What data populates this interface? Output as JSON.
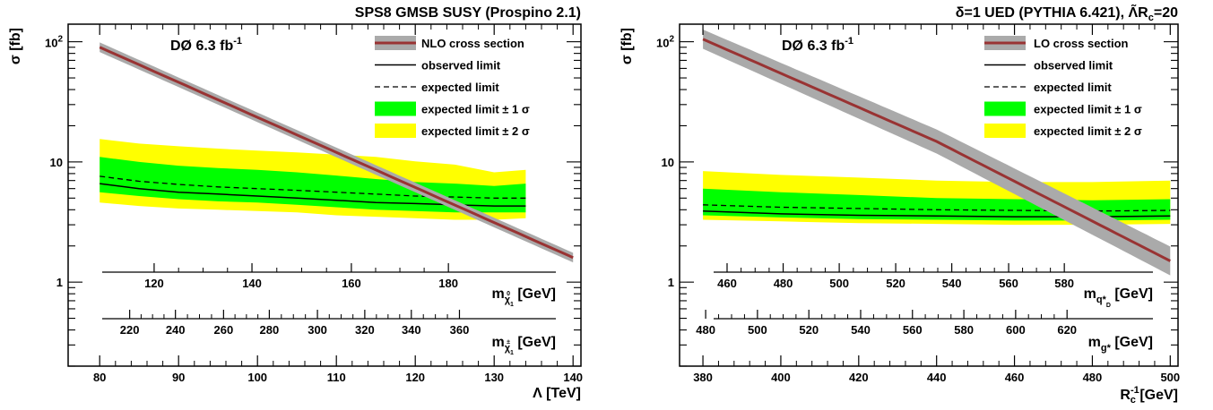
{
  "chart_data": [
    {
      "type": "line",
      "title": "SPS8 GMSB SUSY (Prospino 2.1)",
      "experiment_label": "DØ 6.3 fb",
      "experiment_sup": "-1",
      "xlabel": "Λ [TeV]",
      "ylabel": "σ [fb]",
      "xlim": [
        76,
        141
      ],
      "ylim": [
        0.2,
        140
      ],
      "yscale": "log",
      "xticks": [
        "80",
        "90",
        "100",
        "110",
        "120",
        "130",
        "140"
      ],
      "yticks": [
        "1",
        "10"
      ],
      "ytick_exp": {
        "base": "10",
        "exp": "2"
      },
      "secondary_axes": [
        {
          "label": "m",
          "sub": "χ",
          "subsub": "1",
          "subsup": "0",
          "unit": "[GeV]",
          "ticks": [
            {
              "label": "120",
              "x": 86.9
            },
            {
              "label": "140",
              "x": 99.3
            },
            {
              "label": "160",
              "x": 111.9
            },
            {
              "label": "180",
              "x": 124.2
            }
          ]
        },
        {
          "label": "m",
          "sub": "χ",
          "subsub": "1",
          "subsup": "±",
          "unit": "[GeV]",
          "ticks": [
            {
              "label": "220",
              "x": 83.8
            },
            {
              "label": "240",
              "x": 89.6
            },
            {
              "label": "260",
              "x": 95.7
            },
            {
              "label": "280",
              "x": 101.5
            },
            {
              "label": "300",
              "x": 107.6
            },
            {
              "label": "320",
              "x": 113.6
            },
            {
              "label": "340",
              "x": 119.5
            },
            {
              "label": "360",
              "x": 125.6
            }
          ]
        }
      ],
      "series": [
        {
          "name": "NLO cross section",
          "x": [
            80,
            140
          ],
          "y": [
            90,
            1.6
          ],
          "band": [
            0.04,
            0.04
          ]
        },
        {
          "name": "observed limit",
          "x": [
            80,
            85,
            90,
            95,
            100,
            105,
            110,
            115,
            120,
            125,
            130,
            134
          ],
          "y": [
            6.6,
            6.0,
            5.6,
            5.4,
            5.2,
            5.0,
            4.8,
            4.6,
            4.5,
            4.4,
            4.3,
            4.3
          ]
        },
        {
          "name": "expected limit",
          "x": [
            80,
            85,
            90,
            95,
            100,
            105,
            110,
            115,
            120,
            125,
            130,
            134
          ],
          "y": [
            7.6,
            6.9,
            6.5,
            6.2,
            6.0,
            5.8,
            5.6,
            5.4,
            5.2,
            5.1,
            5.0,
            5.0
          ]
        },
        {
          "name": "expected limit ± 1 σ",
          "x": [
            80,
            85,
            90,
            95,
            100,
            105,
            110,
            115,
            120,
            125,
            130,
            134
          ],
          "lower": [
            5.6,
            5.2,
            4.9,
            4.7,
            4.6,
            4.4,
            4.2,
            4.0,
            3.9,
            3.8,
            3.8,
            3.8
          ],
          "upper": [
            11.0,
            10.0,
            9.3,
            8.9,
            8.6,
            8.2,
            7.7,
            7.2,
            6.8,
            6.6,
            6.3,
            6.6
          ]
        },
        {
          "name": "expected limit ± 2 σ",
          "x": [
            80,
            85,
            90,
            95,
            100,
            105,
            110,
            115,
            120,
            125,
            130,
            134
          ],
          "lower": [
            4.6,
            4.3,
            4.1,
            4.0,
            3.9,
            3.8,
            3.6,
            3.5,
            3.4,
            3.3,
            3.3,
            3.4
          ],
          "upper": [
            15.5,
            14.2,
            13.5,
            12.9,
            12.4,
            12.0,
            11.5,
            11.0,
            10.1,
            9.5,
            8.2,
            8.6
          ]
        }
      ],
      "legend_placement": "top-right"
    },
    {
      "type": "line",
      "title": "δ=1 UED (PYTHIA 6.421), Λ̃R",
      "title_sub": "c",
      "title_end": "=20",
      "experiment_label": "DØ 6.3 fb",
      "experiment_sup": "-1",
      "xlabel": "R",
      "xlabel_sub": "c",
      "xlabel_sup": "-1",
      "xlabel_unit": "[GeV]",
      "ylabel": "σ [fb]",
      "xlim": [
        374,
        502
      ],
      "ylim": [
        0.2,
        140
      ],
      "yscale": "log",
      "xticks": [
        "380",
        "400",
        "420",
        "440",
        "460",
        "480",
        "500"
      ],
      "yticks": [
        "1",
        "10"
      ],
      "ytick_exp": {
        "base": "10",
        "exp": "2"
      },
      "secondary_axes": [
        {
          "label": "m",
          "sub": "q*",
          "subsub": "D",
          "unit": "[GeV]",
          "ticks": [
            {
              "label": "460",
              "x": 386.2
            },
            {
              "label": "480",
              "x": 400.6
            },
            {
              "label": "500",
              "x": 415.0
            },
            {
              "label": "520",
              "x": 429.5
            },
            {
              "label": "540",
              "x": 443.9
            },
            {
              "label": "560",
              "x": 458.5
            },
            {
              "label": "580",
              "x": 472.8
            }
          ]
        },
        {
          "label": "m",
          "sub": "g*",
          "unit": "[GeV]",
          "ticks": [
            {
              "label": "480",
              "x": 380.7
            },
            {
              "label": "500",
              "x": 394.0
            },
            {
              "label": "520",
              "x": 407.2
            },
            {
              "label": "540",
              "x": 420.5
            },
            {
              "label": "560",
              "x": 433.8
            },
            {
              "label": "580",
              "x": 447.0
            },
            {
              "label": "600",
              "x": 460.3
            },
            {
              "label": "620",
              "x": 473.5
            }
          ]
        }
      ],
      "series": [
        {
          "name": "LO cross section",
          "x": [
            380,
            440,
            500
          ],
          "y": [
            105,
            14.8,
            1.5
          ],
          "band": [
            0.08,
            0.1,
            0.12
          ]
        },
        {
          "name": "observed limit",
          "x": [
            380,
            400,
            420,
            440,
            460,
            480,
            500
          ],
          "y": [
            3.9,
            3.7,
            3.6,
            3.55,
            3.5,
            3.5,
            3.55
          ]
        },
        {
          "name": "expected limit",
          "x": [
            380,
            400,
            420,
            440,
            460,
            480,
            500
          ],
          "y": [
            4.4,
            4.2,
            4.1,
            4.0,
            3.95,
            3.9,
            3.95
          ]
        },
        {
          "name": "expected limit ± 1 σ",
          "x": [
            380,
            400,
            420,
            440,
            460,
            480,
            500
          ],
          "lower": [
            3.6,
            3.45,
            3.35,
            3.3,
            3.25,
            3.25,
            3.3
          ],
          "upper": [
            6.0,
            5.6,
            5.3,
            5.0,
            4.9,
            4.8,
            4.9
          ]
        },
        {
          "name": "expected limit ± 2 σ",
          "x": [
            380,
            400,
            420,
            440,
            460,
            480,
            500
          ],
          "lower": [
            3.3,
            3.2,
            3.1,
            3.05,
            3.0,
            3.0,
            3.05
          ],
          "upper": [
            8.4,
            7.8,
            7.4,
            7.0,
            6.8,
            6.8,
            7.0
          ]
        }
      ],
      "legend_placement": "top-right"
    }
  ],
  "colors": {
    "band_2sigma": "#ffff00",
    "band_1sigma": "#00ff00",
    "xsec_line": "#993333",
    "xsec_band": "#aaaaaa",
    "axis": "#000000"
  }
}
